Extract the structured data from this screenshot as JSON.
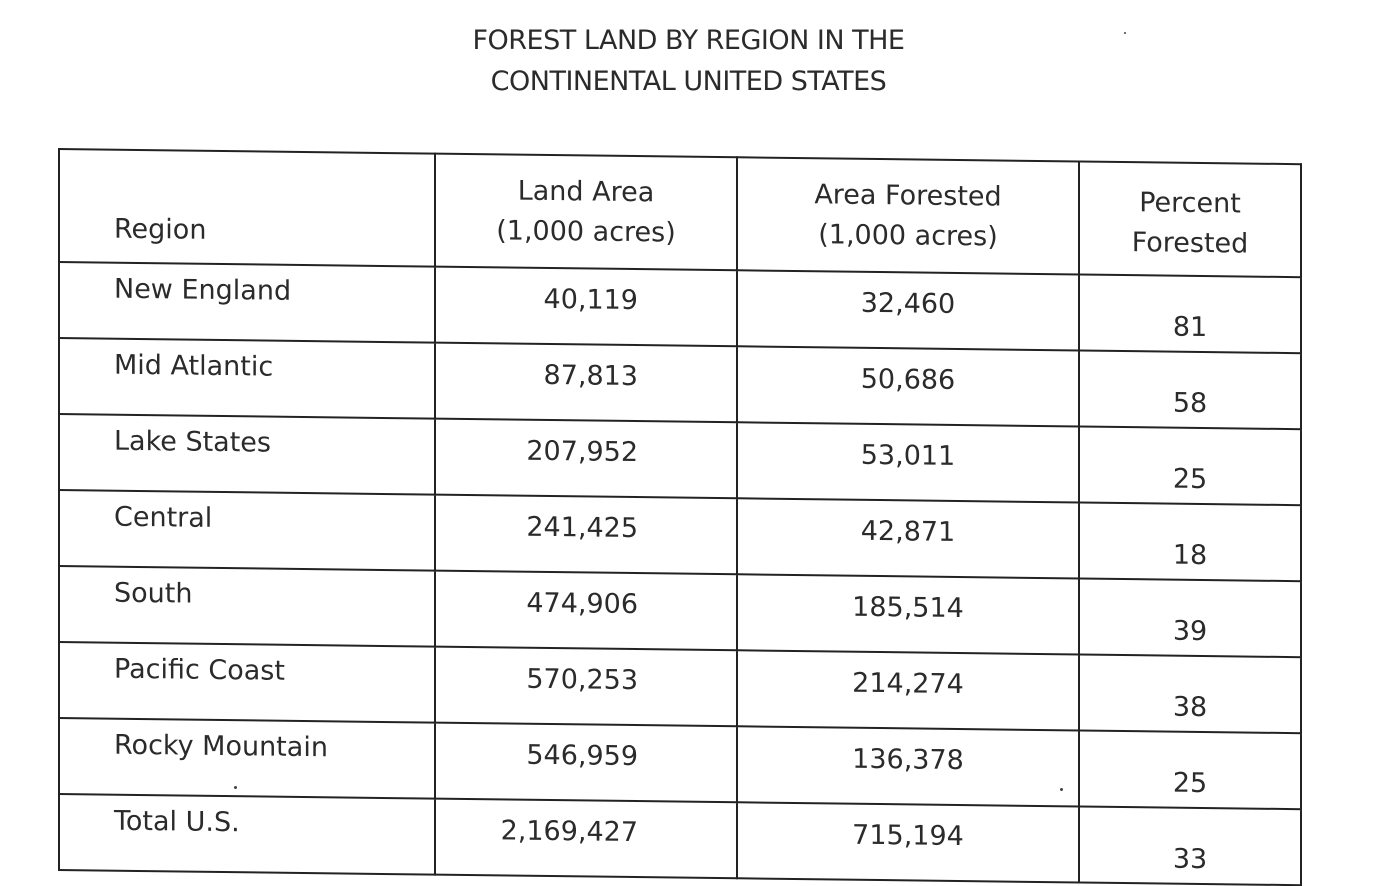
{
  "title": {
    "line1": "FOREST LAND BY REGION IN THE",
    "line2": "CONTINENTAL UNITED STATES"
  },
  "table": {
    "headers": {
      "region": "Region",
      "land_area_line1": "Land Area",
      "land_area_line2": "(1,000 acres)",
      "area_forested_line1": "Area Forested",
      "area_forested_line2": "(1,000 acres)",
      "percent_line1": "Percent",
      "percent_line2": "Forested"
    },
    "rows": [
      {
        "region": "New England",
        "land_area": "40,119",
        "area_forested": "32,460",
        "percent": "81"
      },
      {
        "region": "Mid Atlantic",
        "land_area": "87,813",
        "area_forested": "50,686",
        "percent": "58"
      },
      {
        "region": "Lake States",
        "land_area": "207,952",
        "area_forested": "53,011",
        "percent": "25"
      },
      {
        "region": "Central",
        "land_area": "241,425",
        "area_forested": "42,871",
        "percent": "18"
      },
      {
        "region": "South",
        "land_area": "474,906",
        "area_forested": "185,514",
        "percent": "39"
      },
      {
        "region": "Pacific Coast",
        "land_area": "570,253",
        "area_forested": "214,274",
        "percent": "38"
      },
      {
        "region": "Rocky Mountain",
        "land_area": "546,959",
        "area_forested": "136,378",
        "percent": "25"
      },
      {
        "region": "Total U.S.",
        "land_area": "2,169,427",
        "area_forested": "715,194",
        "percent": "33"
      }
    ]
  },
  "chart_data": {
    "type": "table",
    "title": "FOREST LAND BY REGION IN THE CONTINENTAL UNITED STATES",
    "columns": [
      "Region",
      "Land Area (1,000 acres)",
      "Area Forested (1,000 acres)",
      "Percent Forested"
    ],
    "categories": [
      "New England",
      "Mid Atlantic",
      "Lake States",
      "Central",
      "South",
      "Pacific Coast",
      "Rocky Mountain",
      "Total U.S."
    ],
    "series": [
      {
        "name": "Land Area (1,000 acres)",
        "values": [
          40119,
          87813,
          207952,
          241425,
          474906,
          570253,
          546959,
          2169427
        ]
      },
      {
        "name": "Area Forested (1,000 acres)",
        "values": [
          32460,
          50686,
          53011,
          42871,
          185514,
          214274,
          136378,
          715194
        ]
      },
      {
        "name": "Percent Forested",
        "values": [
          81,
          58,
          25,
          18,
          39,
          38,
          25,
          33
        ]
      }
    ]
  }
}
